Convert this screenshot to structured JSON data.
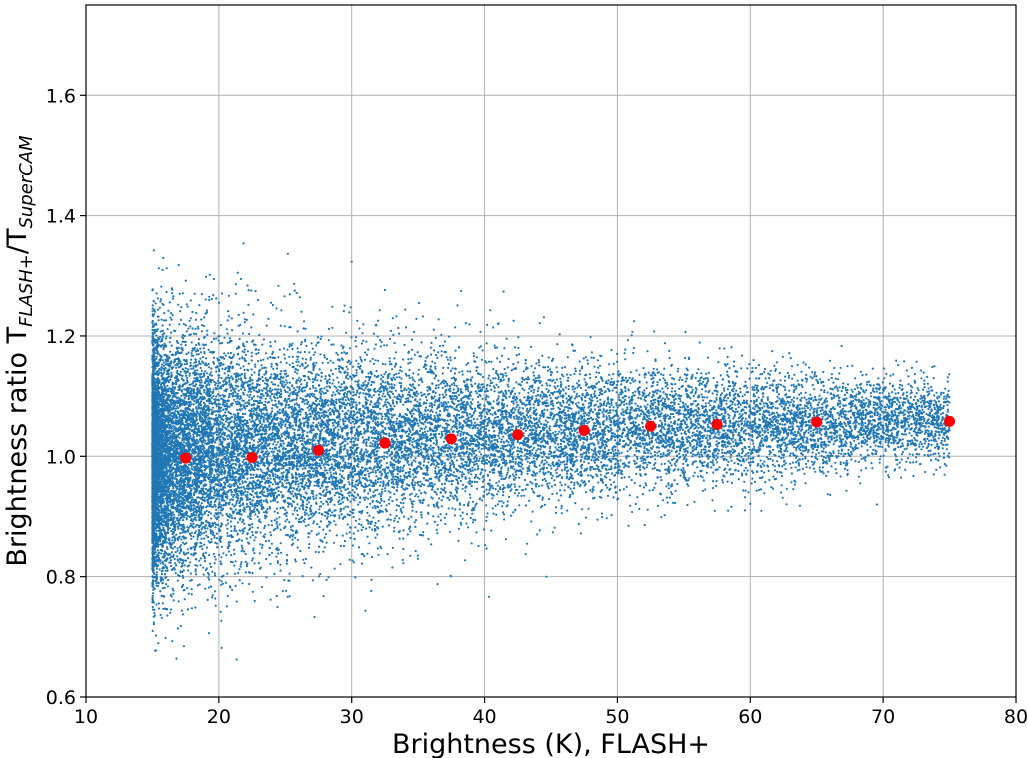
{
  "chart_data": {
    "type": "scatter",
    "title": "",
    "xlabel": "Brightness (K), FLASH+",
    "ylabel_main": "Brightness ratio T",
    "ylabel_sub1": "FLASH+",
    "ylabel_mid": "/T",
    "ylabel_sub2": "SuperCAM",
    "xlim": [
      10,
      80
    ],
    "ylim": [
      0.6,
      1.75
    ],
    "xticks": [
      10,
      20,
      30,
      40,
      50,
      60,
      70,
      80
    ],
    "xtick_labels": [
      "10",
      "20",
      "30",
      "40",
      "50",
      "60",
      "70",
      "80"
    ],
    "yticks": [
      0.6,
      0.8,
      1.0,
      1.2,
      1.4,
      1.6
    ],
    "ytick_labels": [
      "0.6",
      "0.8",
      "1.0",
      "1.2",
      "1.4",
      "1.6"
    ],
    "grid": true,
    "series": [
      {
        "kind": "scatter-cloud",
        "color": "#1f77b4",
        "x_min": 15,
        "x_max": 75,
        "center_ratio_at_x15": 0.99,
        "center_ratio_at_x75": 1.06,
        "spread_sd_at_x15": 0.12,
        "spread_sd_at_x75": 0.04,
        "density": "decreasing with brightness"
      },
      {
        "kind": "binned-means",
        "color": "#ff0000",
        "x": [
          17.5,
          22.5,
          27.5,
          32.5,
          37.5,
          42.5,
          47.5,
          52.5,
          57.5,
          65,
          75
        ],
        "y": [
          0.997,
          0.998,
          1.01,
          1.022,
          1.029,
          1.036,
          1.043,
          1.05,
          1.053,
          1.057,
          1.058
        ]
      }
    ]
  }
}
